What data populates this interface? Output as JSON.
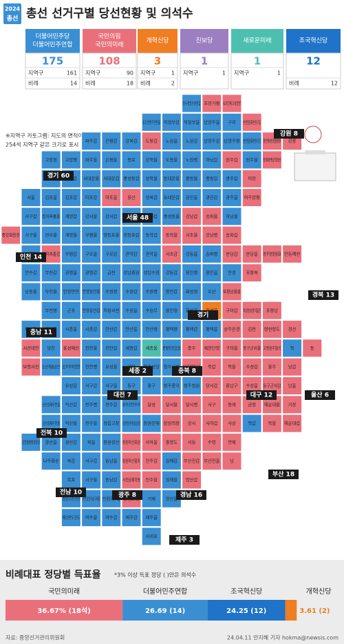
{
  "header": {
    "badge_top": "2024",
    "badge_bottom": "총선",
    "title": "총선 선거구별 당선현황 및 의석수"
  },
  "parties": [
    {
      "name": [
        "더불어민주당",
        "더불어민주연합"
      ],
      "color": "#3a8fd3",
      "total": 175,
      "district_label": "지역구",
      "district": 161,
      "prop_label": "비례",
      "prop": 14
    },
    {
      "name": [
        "국민의힘",
        "국민의미래"
      ],
      "color": "#e9707a",
      "total": 108,
      "district_label": "지역구",
      "district": 90,
      "prop_label": "비례",
      "prop": 18
    },
    {
      "name": [
        "개혁신당"
      ],
      "color": "#ef7d22",
      "total": 3,
      "district_label": "지역구",
      "district": 1,
      "prop_label": "비례",
      "prop": 2
    },
    {
      "name": [
        "진보당"
      ],
      "color": "#9b7fc0",
      "total": 1,
      "district_label": "지역구",
      "district": 1
    },
    {
      "name": [
        "새로운미래"
      ],
      "color": "#4dbfb0",
      "total": 1,
      "district_label": "지역구",
      "district": 1
    },
    {
      "name": [
        "조국혁신당"
      ],
      "color": "#1f73c8",
      "total": 12,
      "prop_label": "비례",
      "prop": 12
    }
  ],
  "notes": [
    "※지역구 카토그램: 지도의 면적이 아닌",
    "254석 지역구 같은 크기로 표시"
  ],
  "map": {
    "rows": [
      {
        "labels": [
          "동두천양주연천갑",
          "포천가평",
          "속초인제고성양양"
        ],
        "colors": [
          "#3a8fd3",
          "#e9707a",
          "#e9707a"
        ]
      },
      {
        "labels": [
          "동두천양주연천을",
          "의정부갑",
          "의정부을",
          "남양주을",
          "구리",
          "춘천철원화천양구을"
        ],
        "colors": [
          "#3a8fd3",
          "#3a8fd3",
          "#3a8fd3",
          "#3a8fd3",
          "#3a8fd3",
          "#e9707a"
        ]
      },
      {
        "labels": [
          "파주갑",
          "은평갑",
          "강북갑",
          "도봉갑",
          "노원을",
          "노원갑",
          "남양주갑",
          "남양주병",
          "춘천철원화천양구갑",
          "홍천횡성영월평창",
          "강릉"
        ],
        "colors": [
          "#3a8fd3",
          "#3a8fd3",
          "#3a8fd3",
          "#e9707a",
          "#3a8fd3",
          "#3a8fd3",
          "#3a8fd3",
          "#3a8fd3",
          "#3a8fd3",
          "#e9707a",
          "#e9707a"
        ]
      },
      {
        "labels": [
          "고양정",
          "고양병",
          "파주을",
          "은평을",
          "종로",
          "강북을",
          "도봉을",
          "노원병",
          "하남갑",
          "원주갑",
          "원주을",
          "동해태백삼척정선"
        ],
        "colors": [
          "#3a8fd3",
          "#3a8fd3",
          "#3a8fd3",
          "#3a8fd3",
          "#3a8fd3",
          "#3a8fd3",
          "#3a8fd3",
          "#3a8fd3",
          "#3a8fd3",
          "#e9707a",
          "#3a8fd3",
          "#e9707a"
        ]
      },
      {
        "labels": [
          "고양을",
          "고양갑",
          "서대문을",
          "서대문갑",
          "중성동갑",
          "성북을",
          "동대문을",
          "중랑을",
          "중랑갑",
          "광주갑",
          "이천"
        ],
        "colors": [
          "#3a8fd3",
          "#3a8fd3",
          "#3a8fd3",
          "#3a8fd3",
          "#3a8fd3",
          "#3a8fd3",
          "#3a8fd3",
          "#3a8fd3",
          "#3a8fd3",
          "#3a8fd3",
          "#e9707a"
        ]
      },
      {
        "labels": [
          "서울",
          "김포을",
          "김포갑",
          "마포갑",
          "마포을",
          "용산",
          "성북갑",
          "동대문갑",
          "광진을",
          "광진갑",
          "광주을",
          "여주양평"
        ],
        "colors": [
          "#3a8fd3",
          "#3a8fd3",
          "#3a8fd3",
          "#3a8fd3",
          "#e9707a",
          "#e9707a",
          "#3a8fd3",
          "#3a8fd3",
          "#3a8fd3",
          "#3a8fd3",
          "#3a8fd3",
          "#e9707a"
        ]
      },
      {
        "labels": [
          "서구갑",
          "동미추홀을",
          "계양갑",
          "강서을",
          "강서갑",
          "강서병",
          "양천갑",
          "중성동을",
          "강남갑",
          "송파을",
          "하남을"
        ],
        "colors": [
          "#3a8fd3",
          "#3a8fd3",
          "#3a8fd3",
          "#3a8fd3",
          "#3a8fd3",
          "#3a8fd3",
          "#3a8fd3",
          "#3a8fd3",
          "#e9707a",
          "#e9707a",
          "#3a8fd3"
        ]
      },
      {
        "labels": [
          "중강화옹진",
          "서구을",
          "연수을",
          "계양을",
          "부평을",
          "영등포을",
          "영등포갑",
          "동작갑",
          "동작을",
          "서초을",
          "강남병",
          "송파갑"
        ],
        "colors": [
          "#e9707a",
          "#3a8fd3",
          "#3a8fd3",
          "#3a8fd3",
          "#3a8fd3",
          "#3a8fd3",
          "#3a8fd3",
          "#3a8fd3",
          "#e9707a",
          "#e9707a",
          "#e9707a",
          "#e9707a"
        ]
      },
      {
        "labels": [
          "남동갑",
          "동미추홀갑",
          "부평갑",
          "구로을",
          "구로갑",
          "관악갑",
          "관악을",
          "서초갑",
          "강동을",
          "송파병",
          "분당갑",
          "분당을",
          "영주영양봉화",
          "안동예천"
        ],
        "colors": [
          "#3a8fd3",
          "#e9707a",
          "#3a8fd3",
          "#3a8fd3",
          "#3a8fd3",
          "#3a8fd3",
          "#3a8fd3",
          "#e9707a",
          "#3a8fd3",
          "#3a8fd3",
          "#e9707a",
          "#e9707a",
          "#e9707a",
          "#e9707a"
        ]
      },
      {
        "labels": [
          "연수갑",
          "부천갑",
          "광명을",
          "광명갑",
          "금천",
          "성남중원",
          "성남수정",
          "강동갑",
          "용인병",
          "용인을",
          "안성",
          "포항북"
        ],
        "colors": [
          "#3a8fd3",
          "#3a8fd3",
          "#3a8fd3",
          "#3a8fd3",
          "#3a8fd3",
          "#3a8fd3",
          "#3a8fd3",
          "#3a8fd3",
          "#3a8fd3",
          "#3a8fd3",
          "#3a8fd3",
          "#e9707a"
        ]
      },
      {
        "labels": [
          "남동을",
          "부천을",
          "안양만안",
          "안양동안을",
          "수원정",
          "수원갑",
          "수원병",
          "용인갑",
          "화성정",
          "오산",
          "포항남울릉"
        ],
        "colors": [
          "#3a8fd3",
          "#3a8fd3",
          "#3a8fd3",
          "#3a8fd3",
          "#3a8fd3",
          "#3a8fd3",
          "#3a8fd3",
          "#3a8fd3",
          "#3a8fd3",
          "#3a8fd3",
          "#e9707a"
        ]
      },
      {
        "labels": [
          "부천병",
          "군포",
          "안양동안갑",
          "의왕과천",
          "수원을",
          "수원무",
          "용인정",
          "화성갑",
          "화성을",
          "구미갑",
          "의성청송영덕울진",
          "포항남"
        ],
        "colors": [
          "#3a8fd3",
          "#3a8fd3",
          "#3a8fd3",
          "#3a8fd3",
          "#3a8fd3",
          "#3a8fd3",
          "#3a8fd3",
          "#3a8fd3",
          "#ef7d22",
          "#e9707a",
          "#e9707a",
          "#e9707a"
        ]
      },
      {
        "labels": [
          "아산갑",
          "아산을",
          "시흥을",
          "시흥갑",
          "안산갑",
          "안산을",
          "안산병",
          "평택병",
          "평택갑",
          "평택을",
          "상주문경",
          "김천",
          "영천청도",
          "경산"
        ],
        "colors": [
          "#3a8fd3",
          "#3a8fd3",
          "#3a8fd3",
          "#3a8fd3",
          "#3a8fd3",
          "#3a8fd3",
          "#3a8fd3",
          "#3a8fd3",
          "#3a8fd3",
          "#3a8fd3",
          "#e9707a",
          "#e9707a",
          "#e9707a",
          "#e9707a"
        ]
      },
      {
        "labels": [
          "서산태안",
          "당진",
          "홍성예산",
          "천안을",
          "천안갑",
          "세종갑",
          "세종을",
          "증평진천음성",
          "충주",
          "제천단양",
          "구미을",
          "동구군위을",
          "고령성주칠곡",
          "북",
          "동"
        ],
        "colors": [
          "#e9707a",
          "#3a8fd3",
          "#e9707a",
          "#3a8fd3",
          "#3a8fd3",
          "#3a8fd3",
          "#4dbfb0",
          "#3a8fd3",
          "#e9707a",
          "#e9707a",
          "#e9707a",
          "#e9707a",
          "#e9707a",
          "#3a8fd3",
          "#e9707a"
        ]
      },
      {
        "labels": [
          "보령서천",
          "논산계룡금산",
          "공주부여청양",
          "천안병",
          "유성을",
          "대덕",
          "청주상당",
          "청주서원",
          "보은옥천영동괴산",
          "북갑",
          "북을",
          "수성갑",
          "울주",
          "남갑"
        ],
        "colors": [
          "#e9707a",
          "#3a8fd3",
          "#3a8fd3",
          "#3a8fd3",
          "#3a8fd3",
          "#3a8fd3",
          "#3a8fd3",
          "#3a8fd3",
          "#e9707a",
          "#e9707a",
          "#e9707a",
          "#e9707a",
          "#e9707a",
          "#e9707a"
        ]
      },
      {
        "labels": [
          "유성갑",
          "서구갑",
          "서구을",
          "동구",
          "중구",
          "청주흥덕",
          "청주청원",
          "달서갑",
          "중남구",
          "수성을",
          "동구군위갑",
          "남을"
        ],
        "colors": [
          "#3a8fd3",
          "#3a8fd3",
          "#3a8fd3",
          "#3a8fd3",
          "#3a8fd3",
          "#3a8fd3",
          "#3a8fd3",
          "#e9707a",
          "#e9707a",
          "#e9707a",
          "#e9707a",
          "#e9707a"
        ]
      },
      {
        "labels": [
          "군산김제부안갑",
          "익산갑",
          "전주병",
          "전주갑",
          "완주진안무주",
          "달성",
          "달서을",
          "달서병",
          "서구",
          "동래",
          "금정",
          "해운대을",
          "기장"
        ],
        "colors": [
          "#3a8fd3",
          "#3a8fd3",
          "#3a8fd3",
          "#3a8fd3",
          "#3a8fd3",
          "#e9707a",
          "#e9707a",
          "#e9707a",
          "#e9707a",
          "#e9707a",
          "#e9707a",
          "#e9707a",
          "#e9707a"
        ]
      },
      {
        "labels": [
          "군산김제부안을",
          "익산을",
          "전주을",
          "정읍고창",
          "남원장수임실순창",
          "창원진해",
          "창원의창",
          "강서",
          "사하갑",
          "사상",
          "북갑",
          "북을",
          "해운대갑"
        ],
        "colors": [
          "#3a8fd3",
          "#3a8fd3",
          "#3a8fd3",
          "#3a8fd3",
          "#3a8fd3",
          "#3a8fd3",
          "#e9707a",
          "#e9707a",
          "#e9707a",
          "#e9707a",
          "#3a8fd3",
          "#e9707a",
          "#e9707a"
        ]
      },
      {
        "labels": [
          "담양함평영광장성",
          "광산을",
          "광산갑",
          "북을",
          "창원성산",
          "창원마산회원",
          "사하을",
          "중영도",
          "서동",
          "수영",
          "연제"
        ],
        "colors": [
          "#3a8fd3",
          "#3a8fd3",
          "#3a8fd3",
          "#3a8fd3",
          "#3a8fd3",
          "#e9707a",
          "#e9707a",
          "#e9707a",
          "#e9707a",
          "#e9707a",
          "#e9707a"
        ]
      },
      {
        "labels": [
          "나주화순",
          "북갑",
          "서구갑",
          "동남을",
          "창원마산합포",
          "진주갑",
          "김해갑",
          "부산진갑",
          "부산진을",
          "남"
        ],
        "colors": [
          "#3a8fd3",
          "#3a8fd3",
          "#3a8fd3",
          "#3a8fd3",
          "#e9707a",
          "#e9707a",
          "#3a8fd3",
          "#e9707a",
          "#e9707a",
          "#e9707a"
        ]
      },
      {
        "labels": [
          "목포",
          "서구을",
          "동남갑",
          "사천남해하동",
          "진주을",
          "김해을",
          "양산갑"
        ],
        "colors": [
          "#3a8fd3",
          "#3a8fd3",
          "#3a8fd3",
          "#e9707a",
          "#e9707a",
          "#3a8fd3",
          "#e9707a"
        ]
      },
      {
        "labels": [
          "영암무안신안",
          "순천광양곡성구례갑",
          "순천광양곡성구례을",
          "통영고성",
          "거제",
          "양산을"
        ],
        "colors": [
          "#3a8fd3",
          "#3a8fd3",
          "#3a8fd3",
          "#e9707a",
          "#3a8fd3",
          "#3a8fd3"
        ]
      },
      {
        "labels": [
          "해남완도진도",
          "여수을",
          "여수갑",
          "제주갑",
          "제주을"
        ],
        "colors": [
          "#3a8fd3",
          "#3a8fd3",
          "#3a8fd3",
          "#3a8fd3",
          "#3a8fd3"
        ]
      },
      {
        "labels": [
          "서귀포"
        ],
        "colors": [
          "#3a8fd3"
        ]
      }
    ],
    "regions": [
      "강원 8",
      "경기 60",
      "서울 48",
      "인천 14",
      "경기",
      "경북 13",
      "충남 11",
      "세종 2",
      "충북 8",
      "대전 7",
      "대구 12",
      "울산 6",
      "전북 10",
      "부산 18",
      "전남 10",
      "광주 8",
      "경남 16",
      "제주 3"
    ]
  },
  "chart_data": {
    "type": "stacked-bar",
    "title": "비례대표 정당별 득표율",
    "subtitle": "*3% 이상 득표 정당 ( )안은 의석수",
    "categories": [
      "국민의미래",
      "더불어민주연합",
      "조국혁신당",
      "개혁신당"
    ],
    "values": [
      36.67,
      26.69,
      24.25,
      3.61
    ],
    "value_labels": [
      "36.67% (18석)",
      "26.69 (14)",
      "24.25 (12)",
      "3.61 (2)"
    ],
    "colors": [
      "#e9707a",
      "#3a8fd3",
      "#1f73c8",
      "#ef7d22"
    ]
  },
  "footer": {
    "source": "자료: 중앙선거관리위원회",
    "credit": "24.04.11 안지혜 기자 hokma@newsis.com"
  }
}
